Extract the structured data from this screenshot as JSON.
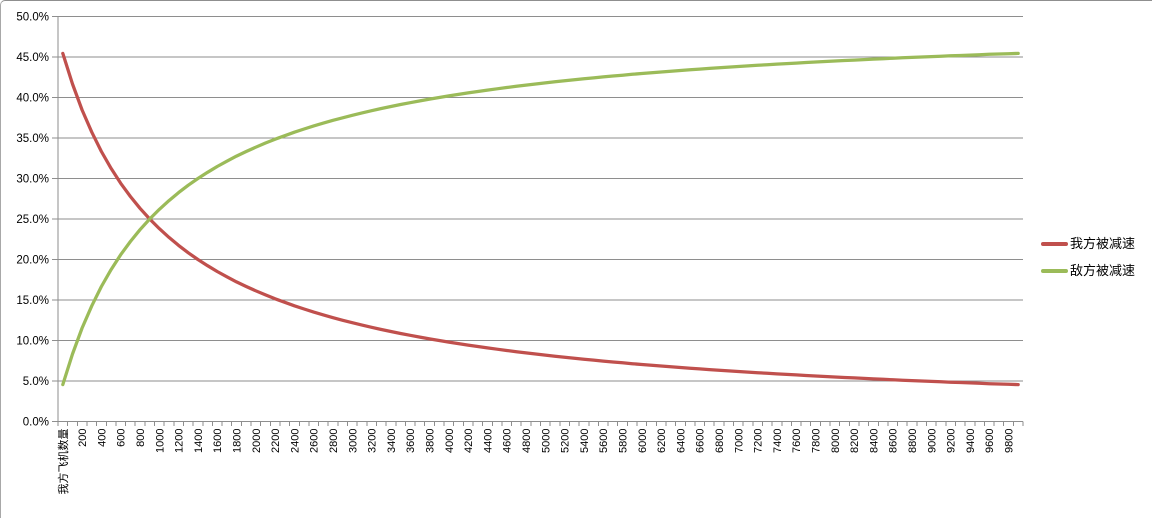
{
  "chart_data": {
    "type": "line",
    "title": "",
    "xlabel": "",
    "ylabel": "",
    "grid": true,
    "legend_position": "right",
    "background": "#FFFFFF",
    "gridline_color": "#8E8E8E",
    "axis_color": "#8E8E8E",
    "tick_text_color": "#000000",
    "frame_border_color": "#8F8F8F",
    "ylim": [
      0,
      50
    ],
    "ytick_step": 5,
    "y_unit": "%",
    "y_tick_labels": [
      "0.0%",
      "5.0%",
      "10.0%",
      "15.0%",
      "20.0%",
      "25.0%",
      "30.0%",
      "35.0%",
      "40.0%",
      "45.0%",
      "50.0%"
    ],
    "x_tick_labels": [
      "我方飞机数量",
      "200",
      "400",
      "600",
      "800",
      "1000",
      "1200",
      "1400",
      "1600",
      "1800",
      "2000",
      "2200",
      "2400",
      "2600",
      "2800",
      "3000",
      "3200",
      "3400",
      "3600",
      "3800",
      "4000",
      "4200",
      "4400",
      "4600",
      "4800",
      "5000",
      "5200",
      "5400",
      "5600",
      "5800",
      "6000",
      "6200",
      "6400",
      "6600",
      "6800",
      "7000",
      "7200",
      "7400",
      "7600",
      "7800",
      "8000",
      "8200",
      "8400",
      "8600",
      "8800",
      "9000",
      "9200",
      "9400",
      "9600",
      "9800"
    ],
    "x": [
      100,
      200,
      300,
      400,
      500,
      600,
      700,
      800,
      900,
      1000,
      1100,
      1200,
      1300,
      1400,
      1500,
      1600,
      1700,
      1800,
      1900,
      2000,
      2100,
      2200,
      2300,
      2400,
      2500,
      2600,
      2700,
      2800,
      2900,
      3000,
      3100,
      3200,
      3300,
      3400,
      3500,
      3600,
      3700,
      3800,
      3900,
      4000,
      4100,
      4200,
      4300,
      4400,
      4500,
      4600,
      4700,
      4800,
      4900,
      5000,
      5100,
      5200,
      5300,
      5400,
      5500,
      5600,
      5700,
      5800,
      5900,
      6000,
      6100,
      6200,
      6300,
      6400,
      6500,
      6600,
      6700,
      6800,
      6900,
      7000,
      7100,
      7200,
      7300,
      7400,
      7500,
      7600,
      7700,
      7800,
      7900,
      8000,
      8100,
      8200,
      8300,
      8400,
      8500,
      8600,
      8700,
      8800,
      8900,
      9000,
      9100,
      9200,
      9300,
      9400,
      9500,
      9600,
      9700,
      9800,
      9900,
      10000
    ],
    "series": [
      {
        "name": "我方被减速",
        "color": "#C0504D",
        "values": [
          45.45,
          41.67,
          38.46,
          35.71,
          33.33,
          31.25,
          29.41,
          27.78,
          26.32,
          25,
          23.81,
          22.73,
          21.74,
          20.83,
          20,
          19.23,
          18.52,
          17.86,
          17.24,
          16.67,
          16.13,
          15.63,
          15.15,
          14.71,
          14.29,
          13.89,
          13.51,
          13.16,
          12.82,
          12.5,
          12.2,
          11.9,
          11.63,
          11.36,
          11.11,
          10.87,
          10.64,
          10.42,
          10.2,
          10,
          9.8,
          9.62,
          9.43,
          9.26,
          9.09,
          8.93,
          8.77,
          8.62,
          8.47,
          8.33,
          8.2,
          8.06,
          7.94,
          7.81,
          7.69,
          7.58,
          7.46,
          7.35,
          7.25,
          7.14,
          7.04,
          6.94,
          6.85,
          6.76,
          6.67,
          6.58,
          6.49,
          6.41,
          6.33,
          6.25,
          6.17,
          6.1,
          6.02,
          5.95,
          5.88,
          5.81,
          5.75,
          5.68,
          5.62,
          5.56,
          5.49,
          5.43,
          5.38,
          5.32,
          5.26,
          5.21,
          5.15,
          5.1,
          5.05,
          5,
          4.95,
          4.9,
          4.85,
          4.81,
          4.76,
          4.72,
          4.67,
          4.63,
          4.59,
          4.55
        ]
      },
      {
        "name": "敌方被减速",
        "color": "#9BBB59",
        "values": [
          4.55,
          8.33,
          11.54,
          14.29,
          16.67,
          18.75,
          20.59,
          22.22,
          23.68,
          25,
          26.19,
          27.27,
          28.26,
          29.17,
          30,
          30.77,
          31.48,
          32.14,
          32.76,
          33.33,
          33.87,
          34.38,
          34.85,
          35.29,
          35.71,
          36.11,
          36.49,
          36.84,
          37.18,
          37.5,
          37.8,
          38.1,
          38.37,
          38.64,
          38.89,
          39.13,
          39.36,
          39.58,
          39.8,
          40,
          40.2,
          40.38,
          40.57,
          40.74,
          40.91,
          41.07,
          41.23,
          41.38,
          41.53,
          41.67,
          41.8,
          41.94,
          42.06,
          42.19,
          42.31,
          42.42,
          42.54,
          42.65,
          42.75,
          42.86,
          42.96,
          43.06,
          43.15,
          43.24,
          43.33,
          43.42,
          43.51,
          43.59,
          43.67,
          43.75,
          43.83,
          43.9,
          43.98,
          44.05,
          44.12,
          44.19,
          44.25,
          44.32,
          44.38,
          44.44,
          44.51,
          44.57,
          44.62,
          44.68,
          44.74,
          44.79,
          44.85,
          44.9,
          44.95,
          45,
          45.05,
          45.1,
          45.15,
          45.19,
          45.24,
          45.28,
          45.33,
          45.37,
          45.41,
          45.45
        ]
      }
    ]
  }
}
